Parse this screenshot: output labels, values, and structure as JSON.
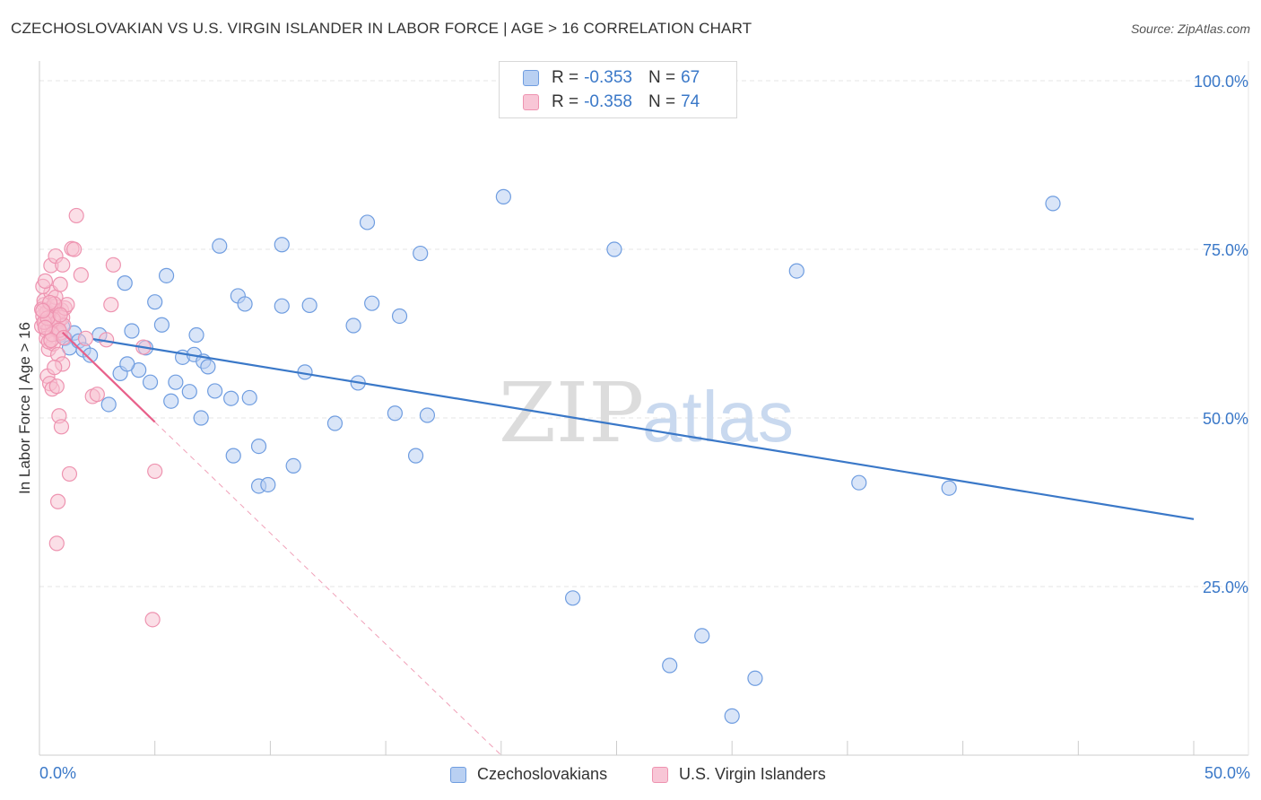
{
  "title": "CZECHOSLOVAKIAN VS U.S. VIRGIN ISLANDER IN LABOR FORCE | AGE > 16 CORRELATION CHART",
  "source": "Source: ZipAtlas.com",
  "watermark": {
    "zip": "ZIP",
    "atlas": "atlas"
  },
  "colors": {
    "blue": "#3a78c8",
    "blue_fill": "#b9d0f2",
    "pink": "#e8608a",
    "pink_fill": "#f8bfd0",
    "grid": "#e4e4e4"
  },
  "legend": {
    "rows": [
      {
        "r_label": "R =",
        "r_value": "-0.353",
        "n_label": "N =",
        "n_value": "67"
      },
      {
        "r_label": "R =",
        "r_value": "-0.358",
        "n_label": "N =",
        "n_value": "74"
      }
    ]
  },
  "bottom_legend": [
    "Czechoslovakians",
    "U.S. Virgin Islanders"
  ],
  "chart_data": {
    "type": "scatter",
    "title": "CZECHOSLOVAKIAN VS U.S. VIRGIN ISLANDER IN LABOR FORCE | AGE > 16 CORRELATION CHART",
    "ylabel": "In Labor Force | Age > 16",
    "xlabel": "",
    "x_range": [
      0,
      50
    ],
    "y_range": [
      0,
      102
    ],
    "x_tick_labels": [
      "0.0%",
      "50.0%"
    ],
    "y_ticks": [
      25,
      50,
      75,
      100
    ],
    "y_tick_labels": [
      "25.0%",
      "50.0%",
      "75.0%",
      "100.0%"
    ],
    "series": [
      {
        "name": "Czechoslovakians",
        "r": -0.353,
        "n": 67,
        "trend": {
          "x": [
            0,
            50
          ],
          "y": [
            63.0,
            35.0
          ],
          "style": "solid"
        },
        "points": [
          [
            0.5,
            64.0
          ],
          [
            0.7,
            63.2
          ],
          [
            0.9,
            62.3
          ],
          [
            1.1,
            61.8
          ],
          [
            1.3,
            60.4
          ],
          [
            1.5,
            62.6
          ],
          [
            1.7,
            61.4
          ],
          [
            1.9,
            60.1
          ],
          [
            2.2,
            59.3
          ],
          [
            2.6,
            62.3
          ],
          [
            3.0,
            52.0
          ],
          [
            3.5,
            56.6
          ],
          [
            3.7,
            70.0
          ],
          [
            4.0,
            62.9
          ],
          [
            4.3,
            57.1
          ],
          [
            4.6,
            60.4
          ],
          [
            4.8,
            55.3
          ],
          [
            5.0,
            67.2
          ],
          [
            5.3,
            63.8
          ],
          [
            5.5,
            71.1
          ],
          [
            5.7,
            52.5
          ],
          [
            5.9,
            55.3
          ],
          [
            6.2,
            59.0
          ],
          [
            6.5,
            53.9
          ],
          [
            6.7,
            59.4
          ],
          [
            6.8,
            62.3
          ],
          [
            7.1,
            58.4
          ],
          [
            7.3,
            57.6
          ],
          [
            7.6,
            54.0
          ],
          [
            7.8,
            75.5
          ],
          [
            8.3,
            52.9
          ],
          [
            8.4,
            44.4
          ],
          [
            8.6,
            68.1
          ],
          [
            8.9,
            66.9
          ],
          [
            9.1,
            53.0
          ],
          [
            9.5,
            45.8
          ],
          [
            9.5,
            39.9
          ],
          [
            9.9,
            40.1
          ],
          [
            10.5,
            66.6
          ],
          [
            10.5,
            75.7
          ],
          [
            11.0,
            42.9
          ],
          [
            11.5,
            56.8
          ],
          [
            11.7,
            66.7
          ],
          [
            12.8,
            49.2
          ],
          [
            13.6,
            63.7
          ],
          [
            13.8,
            55.2
          ],
          [
            14.2,
            79.0
          ],
          [
            14.4,
            67.0
          ],
          [
            15.4,
            50.7
          ],
          [
            15.6,
            65.1
          ],
          [
            16.3,
            44.4
          ],
          [
            16.5,
            74.4
          ],
          [
            16.8,
            50.4
          ],
          [
            20.1,
            82.8
          ],
          [
            23.1,
            23.3
          ],
          [
            24.9,
            75.0
          ],
          [
            27.3,
            13.3
          ],
          [
            28.7,
            17.7
          ],
          [
            30.0,
            5.8
          ],
          [
            31.0,
            11.4
          ],
          [
            32.8,
            71.8
          ],
          [
            35.5,
            40.4
          ],
          [
            39.4,
            39.6
          ],
          [
            43.9,
            81.8
          ],
          [
            1.0,
            63.5
          ],
          [
            3.8,
            58.0
          ],
          [
            7.0,
            50.0
          ]
        ]
      },
      {
        "name": "U.S. Virgin Islanders",
        "r": -0.358,
        "n": 74,
        "trend": {
          "x": [
            0,
            5.0
          ],
          "y": [
            66.0,
            49.4
          ],
          "style": "solid",
          "extended": {
            "x": [
              5.0,
              20.0
            ],
            "y": [
              49.4,
              0
            ]
          }
        },
        "points": [
          [
            0.1,
            63.6
          ],
          [
            0.15,
            65.1
          ],
          [
            0.2,
            66.8
          ],
          [
            0.25,
            64.3
          ],
          [
            0.3,
            62.9
          ],
          [
            0.35,
            65.8
          ],
          [
            0.4,
            63.1
          ],
          [
            0.45,
            66.2
          ],
          [
            0.5,
            64.7
          ],
          [
            0.55,
            63.9
          ],
          [
            0.6,
            65.4
          ],
          [
            0.65,
            64.0
          ],
          [
            0.7,
            66.5
          ],
          [
            0.75,
            63.3
          ],
          [
            0.8,
            65.0
          ],
          [
            0.85,
            64.4
          ],
          [
            0.9,
            62.6
          ],
          [
            0.95,
            66.0
          ],
          [
            1.0,
            64.9
          ],
          [
            1.05,
            63.7
          ],
          [
            0.2,
            67.4
          ],
          [
            0.3,
            61.8
          ],
          [
            0.4,
            60.2
          ],
          [
            0.5,
            68.6
          ],
          [
            0.6,
            61.0
          ],
          [
            0.7,
            67.9
          ],
          [
            0.8,
            59.4
          ],
          [
            0.9,
            69.8
          ],
          [
            1.0,
            58.0
          ],
          [
            1.1,
            66.3
          ],
          [
            0.15,
            69.5
          ],
          [
            0.35,
            56.2
          ],
          [
            0.45,
            55.1
          ],
          [
            0.55,
            54.3
          ],
          [
            0.65,
            57.5
          ],
          [
            0.75,
            54.7
          ],
          [
            0.85,
            50.3
          ],
          [
            0.95,
            48.7
          ],
          [
            0.25,
            70.3
          ],
          [
            0.5,
            72.6
          ],
          [
            0.7,
            74.0
          ],
          [
            1.0,
            72.7
          ],
          [
            1.2,
            66.8
          ],
          [
            1.4,
            75.1
          ],
          [
            1.5,
            75.0
          ],
          [
            1.6,
            80.0
          ],
          [
            1.8,
            71.2
          ],
          [
            2.0,
            61.8
          ],
          [
            2.3,
            53.2
          ],
          [
            2.5,
            53.5
          ],
          [
            2.9,
            61.6
          ],
          [
            3.1,
            66.8
          ],
          [
            3.2,
            72.7
          ],
          [
            4.5,
            60.5
          ],
          [
            5.0,
            42.1
          ],
          [
            4.9,
            20.1
          ],
          [
            1.3,
            41.7
          ],
          [
            0.8,
            37.6
          ],
          [
            0.75,
            31.4
          ],
          [
            0.4,
            61.3
          ],
          [
            0.6,
            64.6
          ],
          [
            0.3,
            65.6
          ],
          [
            0.2,
            64.2
          ],
          [
            0.1,
            66.1
          ],
          [
            0.55,
            62.4
          ],
          [
            0.65,
            66.9
          ],
          [
            0.85,
            63.0
          ],
          [
            0.45,
            67.1
          ],
          [
            0.35,
            64.8
          ],
          [
            0.25,
            63.4
          ],
          [
            0.15,
            65.9
          ],
          [
            0.5,
            61.5
          ],
          [
            0.9,
            65.3
          ],
          [
            1.05,
            61.9
          ]
        ]
      }
    ]
  }
}
